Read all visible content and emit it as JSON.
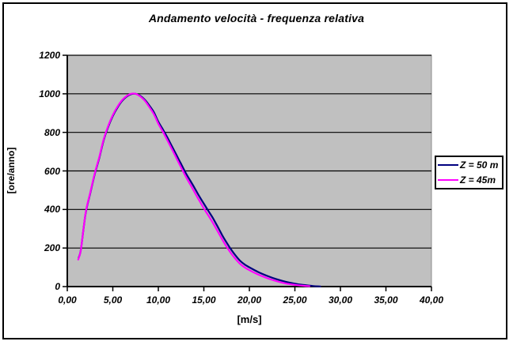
{
  "window": {
    "background": "#ffffff",
    "frame_border_color": "#000000"
  },
  "chart_data": {
    "type": "line",
    "title": "Andamento velocità - frequenza relativa",
    "xlabel": "[m/s]",
    "ylabel": "[ore/anno]",
    "xlim": [
      0,
      40
    ],
    "ylim": [
      0,
      1200
    ],
    "grid": "horizontal-on",
    "plot_bg": "#c0c0c0",
    "gridline_color": "#000000",
    "axis_color": "#000000",
    "legend_position": "right-middle",
    "x_ticks": {
      "values": [
        0,
        5,
        10,
        15,
        20,
        25,
        30,
        35,
        40
      ],
      "labels": [
        "0,00",
        "5,00",
        "10,00",
        "15,00",
        "20,00",
        "25,00",
        "30,00",
        "35,00",
        "40,00"
      ]
    },
    "y_ticks": {
      "values": [
        0,
        200,
        400,
        600,
        800,
        1000,
        1200
      ],
      "labels": [
        "0",
        "200",
        "400",
        "600",
        "800",
        "1000",
        "1200"
      ]
    },
    "series": [
      {
        "name": "Z = 50 m",
        "color": "#000080",
        "x": [
          1.25,
          1.5,
          2,
          2.5,
          3,
          3.5,
          4,
          4.5,
          5,
          5.5,
          6,
          6.5,
          7,
          7.5,
          8,
          8.5,
          9,
          9.5,
          10,
          10.5,
          11,
          11.5,
          12,
          12.5,
          13,
          13.5,
          14,
          14.5,
          15,
          15.5,
          16,
          16.5,
          17,
          17.5,
          18,
          18.5,
          19,
          19.5,
          20,
          21,
          22,
          23,
          24,
          25,
          26,
          27,
          27.8
        ],
        "y": [
          150,
          195,
          375,
          480,
          580,
          665,
          760,
          830,
          885,
          928,
          962,
          985,
          998,
          1000,
          990,
          970,
          940,
          905,
          855,
          815,
          773,
          727,
          682,
          636,
          590,
          550,
          510,
          468,
          430,
          392,
          355,
          312,
          268,
          228,
          192,
          160,
          133,
          114,
          100,
          75,
          55,
          38,
          25,
          15,
          8,
          3,
          1
        ]
      },
      {
        "name": "Z = 45m",
        "color": "#ff00ff",
        "x": [
          1.2,
          1.5,
          2,
          2.5,
          3,
          3.5,
          4,
          4.5,
          5,
          5.5,
          6,
          6.5,
          7,
          7.5,
          8,
          8.5,
          9,
          9.5,
          10,
          10.5,
          11,
          11.5,
          12,
          12.5,
          13,
          13.5,
          14,
          14.5,
          15,
          15.5,
          16,
          16.5,
          17,
          17.5,
          18,
          18.5,
          19,
          19.5,
          20,
          21,
          22,
          23,
          24,
          25,
          26,
          26.6
        ],
        "y": [
          140,
          195,
          378,
          484,
          584,
          670,
          765,
          835,
          890,
          933,
          966,
          988,
          1000,
          1000,
          987,
          965,
          932,
          895,
          845,
          803,
          758,
          712,
          665,
          618,
          572,
          530,
          488,
          446,
          406,
          368,
          330,
          288,
          246,
          207,
          172,
          142,
          117,
          99,
          85,
          62,
          43,
          28,
          16,
          9,
          4,
          2
        ]
      }
    ]
  }
}
